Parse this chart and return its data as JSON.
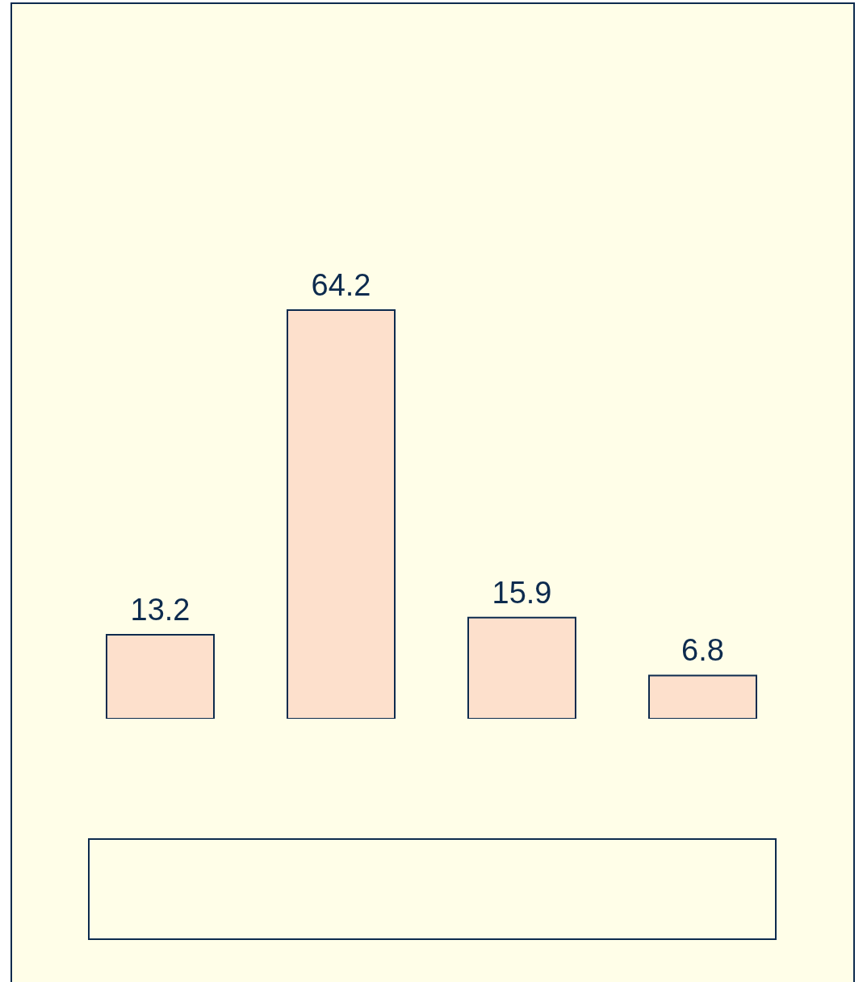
{
  "chart_data": {
    "type": "bar",
    "categories": [
      null,
      null,
      null,
      null
    ],
    "values": [
      13.2,
      64.2,
      15.9,
      6.8
    ],
    "color": "#fde0cc",
    "data_labels": true
  }
}
